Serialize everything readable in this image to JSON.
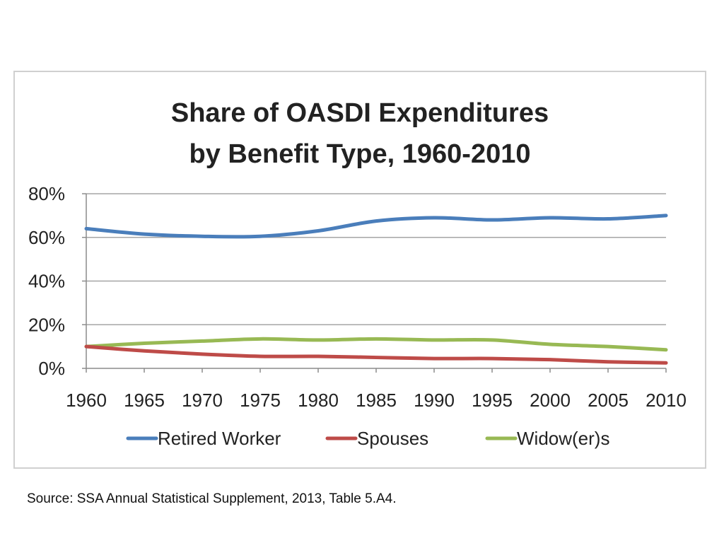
{
  "chart_data": {
    "type": "line",
    "title": [
      "Share of OASDI Expenditures",
      "by Benefit Type, 1960-2010"
    ],
    "xlabel": "",
    "ylabel": "",
    "x": [
      1960,
      1965,
      1970,
      1975,
      1980,
      1985,
      1990,
      1995,
      2000,
      2005,
      2010
    ],
    "x_tick_labels": [
      "1960",
      "1965",
      "1970",
      "1975",
      "1980",
      "1985",
      "1990",
      "1995",
      "2000",
      "2005",
      "2010"
    ],
    "ylim": [
      0,
      80
    ],
    "y_ticks": [
      0,
      20,
      40,
      60,
      80
    ],
    "y_tick_labels": [
      "0%",
      "20%",
      "40%",
      "60%",
      "80%"
    ],
    "grid": true,
    "legend_position": "bottom",
    "series": [
      {
        "name": "Retired Worker",
        "color": "#4a7ebb",
        "values": [
          64,
          61.5,
          60.5,
          60.5,
          63,
          67.5,
          69,
          68,
          69,
          68.5,
          70
        ]
      },
      {
        "name": "Spouses",
        "color": "#be4b48",
        "values": [
          10,
          8,
          6.5,
          5.5,
          5.5,
          5,
          4.5,
          4.5,
          4,
          3,
          2.5
        ]
      },
      {
        "name": "Widow(er)s",
        "color": "#98b954",
        "values": [
          10,
          11.5,
          12.5,
          13.5,
          13,
          13.5,
          13,
          13,
          11,
          10,
          8.5
        ]
      }
    ]
  },
  "source": "Source: SSA Annual Statistical Supplement, 2013, Table 5.A4."
}
